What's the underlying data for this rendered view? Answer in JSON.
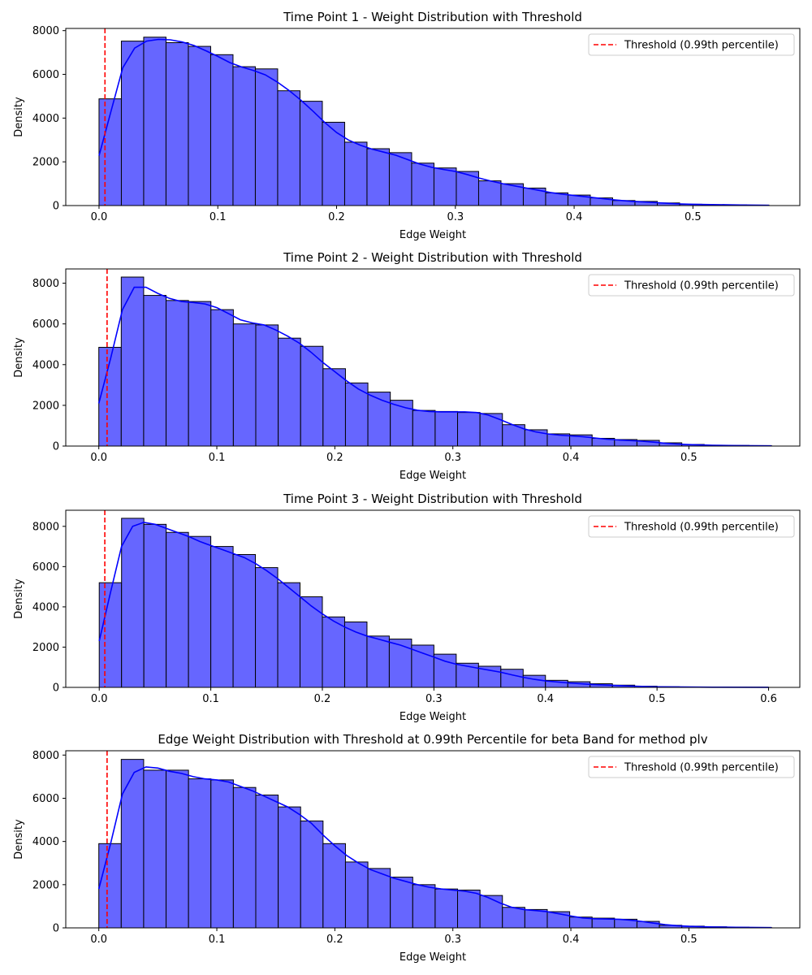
{
  "chart_data": [
    {
      "type": "bar",
      "title": "Time Point 1 - Weight Distribution with Threshold",
      "xlabel": "Edge Weight",
      "ylabel": "Density",
      "xlim": [
        -0.028,
        0.59
      ],
      "ylim": [
        0,
        8100
      ],
      "xticks": [
        0.0,
        0.1,
        0.2,
        0.3,
        0.4,
        0.5
      ],
      "xtick_labels": [
        "0.0",
        "0.1",
        "0.2",
        "0.3",
        "0.4",
        "0.5"
      ],
      "yticks": [
        0,
        2000,
        4000,
        6000,
        8000
      ],
      "ytick_labels": [
        "0",
        "2000",
        "4000",
        "6000",
        "8000"
      ],
      "bin_edges": [
        0.0,
        0.0188,
        0.0376,
        0.0564,
        0.0752,
        0.094,
        0.1128,
        0.1316,
        0.1504,
        0.1692,
        0.188,
        0.2068,
        0.2256,
        0.2444,
        0.2632,
        0.282,
        0.3008,
        0.3196,
        0.3384,
        0.3572,
        0.376,
        0.3948,
        0.4136,
        0.4324,
        0.4512,
        0.47,
        0.4888,
        0.5076,
        0.5264,
        0.5452,
        0.564
      ],
      "values": [
        4880,
        7520,
        7700,
        7450,
        7280,
        6900,
        6350,
        6250,
        5250,
        4770,
        3810,
        2900,
        2600,
        2420,
        1940,
        1720,
        1560,
        1130,
        1000,
        800,
        580,
        480,
        350,
        230,
        190,
        120,
        60,
        40,
        30,
        20
      ],
      "kde": [
        [
          0.0,
          2280
        ],
        [
          0.01,
          4300
        ],
        [
          0.02,
          6300
        ],
        [
          0.03,
          7200
        ],
        [
          0.04,
          7520
        ],
        [
          0.05,
          7600
        ],
        [
          0.06,
          7580
        ],
        [
          0.07,
          7480
        ],
        [
          0.08,
          7320
        ],
        [
          0.09,
          7080
        ],
        [
          0.1,
          6820
        ],
        [
          0.11,
          6540
        ],
        [
          0.12,
          6340
        ],
        [
          0.13,
          6180
        ],
        [
          0.14,
          5980
        ],
        [
          0.15,
          5650
        ],
        [
          0.16,
          5260
        ],
        [
          0.17,
          4820
        ],
        [
          0.18,
          4320
        ],
        [
          0.19,
          3800
        ],
        [
          0.2,
          3340
        ],
        [
          0.21,
          3000
        ],
        [
          0.22,
          2760
        ],
        [
          0.23,
          2580
        ],
        [
          0.24,
          2440
        ],
        [
          0.25,
          2300
        ],
        [
          0.26,
          2100
        ],
        [
          0.27,
          1900
        ],
        [
          0.28,
          1750
        ],
        [
          0.29,
          1650
        ],
        [
          0.3,
          1560
        ],
        [
          0.31,
          1420
        ],
        [
          0.32,
          1260
        ],
        [
          0.33,
          1120
        ],
        [
          0.34,
          1000
        ],
        [
          0.35,
          900
        ],
        [
          0.36,
          800
        ],
        [
          0.37,
          700
        ],
        [
          0.38,
          600
        ],
        [
          0.39,
          520
        ],
        [
          0.4,
          460
        ],
        [
          0.41,
          400
        ],
        [
          0.42,
          340
        ],
        [
          0.43,
          280
        ],
        [
          0.44,
          230
        ],
        [
          0.45,
          190
        ],
        [
          0.46,
          160
        ],
        [
          0.47,
          130
        ],
        [
          0.48,
          100
        ],
        [
          0.49,
          75
        ],
        [
          0.5,
          60
        ],
        [
          0.52,
          40
        ],
        [
          0.54,
          25
        ],
        [
          0.564,
          10
        ]
      ],
      "threshold": 0.005,
      "legend": "Threshold (0.99th percentile)",
      "legend_position": "upper right",
      "grid": false
    },
    {
      "type": "bar",
      "title": "Time Point 2 - Weight Distribution with Threshold",
      "xlabel": "Edge Weight",
      "ylabel": "Density",
      "xlim": [
        -0.028,
        0.594
      ],
      "ylim": [
        0,
        8700
      ],
      "xticks": [
        0.0,
        0.1,
        0.2,
        0.3,
        0.4,
        0.5
      ],
      "xtick_labels": [
        "0.0",
        "0.1",
        "0.2",
        "0.3",
        "0.4",
        "0.5"
      ],
      "yticks": [
        0,
        2000,
        4000,
        6000,
        8000
      ],
      "ytick_labels": [
        "0",
        "2000",
        "4000",
        "6000",
        "8000"
      ],
      "bin_edges": [
        0.0,
        0.019,
        0.038,
        0.057,
        0.076,
        0.095,
        0.114,
        0.133,
        0.152,
        0.171,
        0.19,
        0.209,
        0.228,
        0.247,
        0.266,
        0.285,
        0.304,
        0.323,
        0.342,
        0.361,
        0.38,
        0.399,
        0.418,
        0.437,
        0.456,
        0.475,
        0.494,
        0.513,
        0.532,
        0.551,
        0.57
      ],
      "values": [
        4850,
        8300,
        7400,
        7150,
        7100,
        6700,
        6000,
        5950,
        5300,
        4900,
        3800,
        3100,
        2650,
        2250,
        1750,
        1700,
        1650,
        1600,
        1050,
        800,
        600,
        550,
        380,
        320,
        280,
        160,
        80,
        40,
        30,
        20
      ],
      "kde": [
        [
          0.0,
          2100
        ],
        [
          0.01,
          4300
        ],
        [
          0.02,
          6700
        ],
        [
          0.03,
          7800
        ],
        [
          0.04,
          7800
        ],
        [
          0.05,
          7500
        ],
        [
          0.06,
          7250
        ],
        [
          0.07,
          7100
        ],
        [
          0.08,
          7050
        ],
        [
          0.09,
          6980
        ],
        [
          0.1,
          6800
        ],
        [
          0.11,
          6500
        ],
        [
          0.12,
          6200
        ],
        [
          0.13,
          6050
        ],
        [
          0.14,
          5950
        ],
        [
          0.15,
          5700
        ],
        [
          0.16,
          5400
        ],
        [
          0.17,
          5050
        ],
        [
          0.18,
          4600
        ],
        [
          0.19,
          4100
        ],
        [
          0.2,
          3650
        ],
        [
          0.21,
          3200
        ],
        [
          0.22,
          2800
        ],
        [
          0.23,
          2500
        ],
        [
          0.24,
          2250
        ],
        [
          0.25,
          2050
        ],
        [
          0.26,
          1880
        ],
        [
          0.27,
          1760
        ],
        [
          0.28,
          1700
        ],
        [
          0.29,
          1680
        ],
        [
          0.3,
          1680
        ],
        [
          0.31,
          1680
        ],
        [
          0.32,
          1650
        ],
        [
          0.33,
          1520
        ],
        [
          0.34,
          1300
        ],
        [
          0.35,
          1060
        ],
        [
          0.36,
          850
        ],
        [
          0.37,
          700
        ],
        [
          0.38,
          600
        ],
        [
          0.39,
          540
        ],
        [
          0.4,
          500
        ],
        [
          0.41,
          460
        ],
        [
          0.42,
          400
        ],
        [
          0.43,
          340
        ],
        [
          0.44,
          300
        ],
        [
          0.45,
          270
        ],
        [
          0.46,
          240
        ],
        [
          0.47,
          190
        ],
        [
          0.48,
          140
        ],
        [
          0.49,
          100
        ],
        [
          0.5,
          70
        ],
        [
          0.52,
          40
        ],
        [
          0.54,
          25
        ],
        [
          0.57,
          10
        ]
      ],
      "threshold": 0.007,
      "legend": "Threshold (0.99th percentile)",
      "legend_position": "upper right",
      "grid": false
    },
    {
      "type": "bar",
      "title": "Time Point 3 - Weight Distribution with Threshold",
      "xlabel": "Edge Weight",
      "ylabel": "Density",
      "xlim": [
        -0.03,
        0.628
      ],
      "ylim": [
        0,
        8800
      ],
      "xticks": [
        0.0,
        0.1,
        0.2,
        0.3,
        0.4,
        0.5,
        0.6
      ],
      "xtick_labels": [
        "0.0",
        "0.1",
        "0.2",
        "0.3",
        "0.4",
        "0.5",
        "0.6"
      ],
      "yticks": [
        0,
        2000,
        4000,
        6000,
        8000
      ],
      "ytick_labels": [
        "0",
        "2000",
        "4000",
        "6000",
        "8000"
      ],
      "bin_edges": [
        0.0,
        0.02,
        0.04,
        0.06,
        0.08,
        0.1,
        0.12,
        0.14,
        0.16,
        0.18,
        0.2,
        0.22,
        0.24,
        0.26,
        0.28,
        0.3,
        0.32,
        0.34,
        0.36,
        0.38,
        0.4,
        0.42,
        0.44,
        0.46,
        0.48,
        0.5,
        0.52,
        0.54,
        0.56,
        0.58,
        0.6
      ],
      "values": [
        5200,
        8400,
        8100,
        7700,
        7500,
        7000,
        6600,
        5950,
        5200,
        4500,
        3500,
        3250,
        2550,
        2400,
        2100,
        1650,
        1200,
        1050,
        900,
        600,
        350,
        280,
        180,
        110,
        60,
        30,
        20,
        10,
        5,
        5
      ],
      "kde": [
        [
          0.0,
          2300
        ],
        [
          0.01,
          4700
        ],
        [
          0.02,
          7000
        ],
        [
          0.03,
          8000
        ],
        [
          0.04,
          8200
        ],
        [
          0.05,
          8100
        ],
        [
          0.06,
          7900
        ],
        [
          0.07,
          7700
        ],
        [
          0.08,
          7500
        ],
        [
          0.09,
          7250
        ],
        [
          0.1,
          7050
        ],
        [
          0.11,
          6850
        ],
        [
          0.12,
          6650
        ],
        [
          0.13,
          6450
        ],
        [
          0.14,
          6150
        ],
        [
          0.15,
          5800
        ],
        [
          0.16,
          5400
        ],
        [
          0.17,
          4950
        ],
        [
          0.18,
          4500
        ],
        [
          0.19,
          4050
        ],
        [
          0.2,
          3650
        ],
        [
          0.21,
          3300
        ],
        [
          0.22,
          3000
        ],
        [
          0.23,
          2750
        ],
        [
          0.24,
          2550
        ],
        [
          0.25,
          2400
        ],
        [
          0.26,
          2250
        ],
        [
          0.27,
          2100
        ],
        [
          0.28,
          1900
        ],
        [
          0.29,
          1700
        ],
        [
          0.3,
          1500
        ],
        [
          0.31,
          1300
        ],
        [
          0.32,
          1150
        ],
        [
          0.33,
          1050
        ],
        [
          0.34,
          950
        ],
        [
          0.35,
          850
        ],
        [
          0.36,
          750
        ],
        [
          0.37,
          620
        ],
        [
          0.38,
          500
        ],
        [
          0.39,
          400
        ],
        [
          0.4,
          320
        ],
        [
          0.42,
          220
        ],
        [
          0.44,
          150
        ],
        [
          0.46,
          100
        ],
        [
          0.48,
          60
        ],
        [
          0.5,
          30
        ],
        [
          0.55,
          10
        ],
        [
          0.6,
          3
        ]
      ],
      "threshold": 0.005,
      "legend": "Threshold (0.99th percentile)",
      "legend_position": "upper right",
      "grid": false
    },
    {
      "type": "bar",
      "title": "Edge Weight Distribution with Threshold at 0.99th Percentile for beta Band for method plv",
      "xlabel": "Edge Weight",
      "ylabel": "Density",
      "xlim": [
        -0.028,
        0.594
      ],
      "ylim": [
        0,
        8200
      ],
      "xticks": [
        0.0,
        0.1,
        0.2,
        0.3,
        0.4,
        0.5
      ],
      "xtick_labels": [
        "0.0",
        "0.1",
        "0.2",
        "0.3",
        "0.4",
        "0.5"
      ],
      "yticks": [
        0,
        2000,
        4000,
        6000,
        8000
      ],
      "ytick_labels": [
        "0",
        "2000",
        "4000",
        "6000",
        "8000"
      ],
      "bin_edges": [
        0.0,
        0.019,
        0.038,
        0.057,
        0.076,
        0.095,
        0.114,
        0.133,
        0.152,
        0.171,
        0.19,
        0.209,
        0.228,
        0.247,
        0.266,
        0.285,
        0.304,
        0.323,
        0.342,
        0.361,
        0.38,
        0.399,
        0.418,
        0.437,
        0.456,
        0.475,
        0.494,
        0.513,
        0.532,
        0.551,
        0.57
      ],
      "values": [
        3900,
        7800,
        7300,
        7300,
        6900,
        6850,
        6500,
        6150,
        5600,
        4950,
        3900,
        3050,
        2750,
        2350,
        2000,
        1800,
        1750,
        1500,
        950,
        850,
        750,
        500,
        450,
        400,
        300,
        120,
        80,
        50,
        30,
        20
      ],
      "kde": [
        [
          0.0,
          1800
        ],
        [
          0.01,
          3900
        ],
        [
          0.02,
          6200
        ],
        [
          0.03,
          7200
        ],
        [
          0.04,
          7450
        ],
        [
          0.05,
          7400
        ],
        [
          0.06,
          7250
        ],
        [
          0.07,
          7150
        ],
        [
          0.08,
          7000
        ],
        [
          0.09,
          6900
        ],
        [
          0.1,
          6850
        ],
        [
          0.11,
          6750
        ],
        [
          0.12,
          6550
        ],
        [
          0.13,
          6350
        ],
        [
          0.14,
          6100
        ],
        [
          0.15,
          5850
        ],
        [
          0.16,
          5600
        ],
        [
          0.17,
          5250
        ],
        [
          0.18,
          4850
        ],
        [
          0.19,
          4300
        ],
        [
          0.2,
          3800
        ],
        [
          0.21,
          3350
        ],
        [
          0.22,
          3000
        ],
        [
          0.23,
          2700
        ],
        [
          0.24,
          2500
        ],
        [
          0.25,
          2300
        ],
        [
          0.26,
          2150
        ],
        [
          0.27,
          2000
        ],
        [
          0.28,
          1880
        ],
        [
          0.29,
          1800
        ],
        [
          0.3,
          1750
        ],
        [
          0.31,
          1700
        ],
        [
          0.32,
          1600
        ],
        [
          0.33,
          1400
        ],
        [
          0.34,
          1150
        ],
        [
          0.35,
          950
        ],
        [
          0.36,
          850
        ],
        [
          0.37,
          800
        ],
        [
          0.38,
          750
        ],
        [
          0.39,
          650
        ],
        [
          0.4,
          550
        ],
        [
          0.41,
          460
        ],
        [
          0.42,
          420
        ],
        [
          0.43,
          410
        ],
        [
          0.44,
          400
        ],
        [
          0.45,
          360
        ],
        [
          0.46,
          300
        ],
        [
          0.47,
          220
        ],
        [
          0.48,
          150
        ],
        [
          0.49,
          100
        ],
        [
          0.5,
          70
        ],
        [
          0.52,
          40
        ],
        [
          0.54,
          25
        ],
        [
          0.57,
          10
        ]
      ],
      "threshold": 0.007,
      "legend": "Threshold (0.99th percentile)",
      "legend_position": "upper right",
      "grid": false
    }
  ],
  "colors": {
    "bar_fill": "#6666ff",
    "bar_edge": "#000000",
    "kde_line": "#0000ff",
    "threshold_line": "#ff0000"
  }
}
